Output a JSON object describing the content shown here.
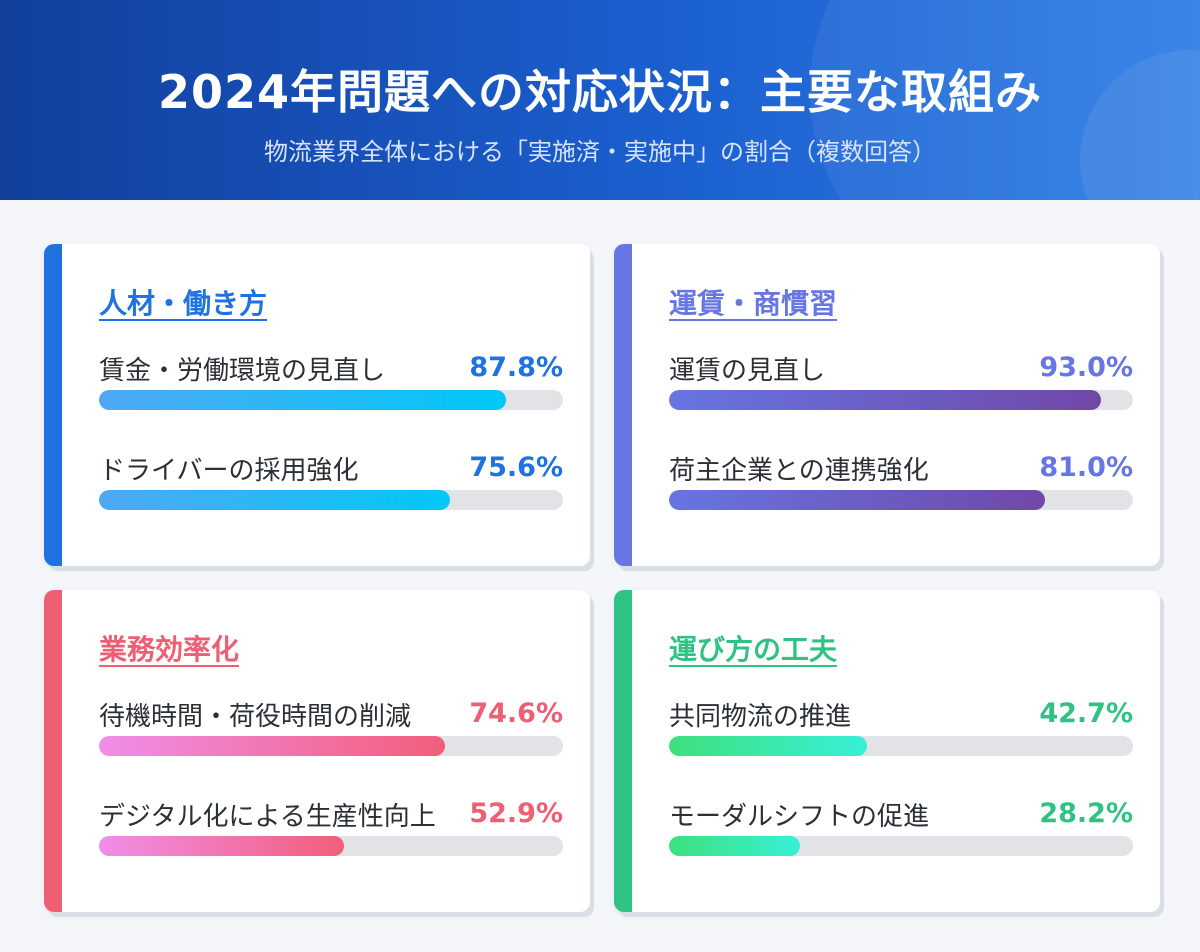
{
  "header": {
    "title": "2024年問題への対応状況：主要な取組み",
    "subtitle": "物流業界全体における「実施済・実施中」の割合（複数回答）"
  },
  "chart_data": {
    "type": "bar",
    "unit": "%",
    "xlim": [
      0,
      100
    ],
    "groups": [
      {
        "title": "人材・働き方",
        "color": "#1f72e0",
        "fill_style": "blue",
        "items": [
          {
            "label": "賃金・労働環境の見直し",
            "value": 87.8,
            "display": "87.8%"
          },
          {
            "label": "ドライバーの採用強化",
            "value": 75.6,
            "display": "75.6%"
          }
        ]
      },
      {
        "title": "運賃・商慣習",
        "color": "#6676e2",
        "fill_style": "purple",
        "items": [
          {
            "label": "運賃の見直し",
            "value": 93.0,
            "display": "93.0%"
          },
          {
            "label": "荷主企業との連携強化",
            "value": 81.0,
            "display": "81.0%"
          }
        ]
      },
      {
        "title": "業務効率化",
        "color": "#ef5f73",
        "fill_style": "pink",
        "items": [
          {
            "label": "待機時間・荷役時間の削減",
            "value": 74.6,
            "display": "74.6%"
          },
          {
            "label": "デジタル化による生産性向上",
            "value": 52.9,
            "display": "52.9%"
          }
        ]
      },
      {
        "title": "運び方の工夫",
        "color": "#2fc283",
        "fill_style": "green",
        "items": [
          {
            "label": "共同物流の推進",
            "value": 42.7,
            "display": "42.7%"
          },
          {
            "label": "モーダルシフトの促進",
            "value": 28.2,
            "display": "28.2%"
          }
        ]
      }
    ]
  }
}
